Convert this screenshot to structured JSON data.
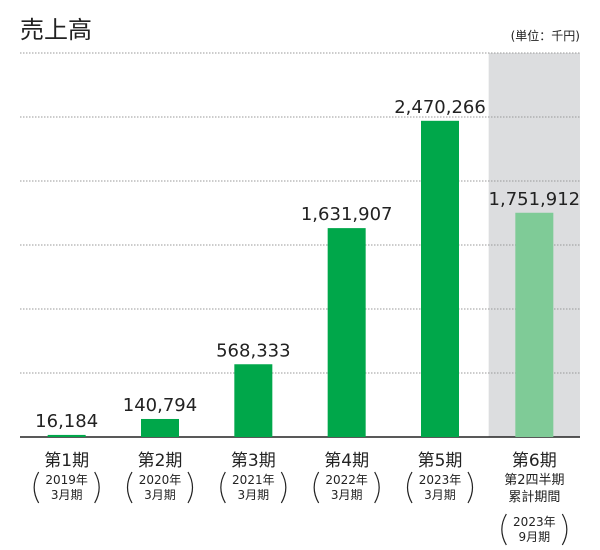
{
  "chart_data": {
    "type": "bar",
    "title": "売上高",
    "unit_label": "(単位：千円)",
    "categories": [
      {
        "period": "第1期",
        "sub": [
          "2019年",
          "3月期"
        ]
      },
      {
        "period": "第2期",
        "sub": [
          "2020年",
          "3月期"
        ]
      },
      {
        "period": "第3期",
        "sub": [
          "2021年",
          "3月期"
        ]
      },
      {
        "period": "第4期",
        "sub": [
          "2022年",
          "3月期"
        ]
      },
      {
        "period": "第5期",
        "sub": [
          "2023年",
          "3月期"
        ]
      },
      {
        "period": "第6期",
        "note": [
          "第2四半期",
          "累計期間"
        ],
        "sub": [
          "2023年",
          "9月期"
        ]
      }
    ],
    "values": [
      16184,
      140794,
      568333,
      1631907,
      2470266,
      1751912
    ],
    "value_labels": [
      "16,184",
      "140,794",
      "568,333",
      "1,631,907",
      "2,470,266",
      "1,751,912"
    ],
    "ylim": [
      0,
      3000000
    ],
    "grid_step": 500000,
    "grid": true,
    "highlighted_category_index": 5,
    "colors": {
      "bar": "#00a74a",
      "bar_highlight": "#7fcb97",
      "highlight_bg": "#dcdddf",
      "grid": "#999999",
      "axis": "#222222"
    }
  }
}
